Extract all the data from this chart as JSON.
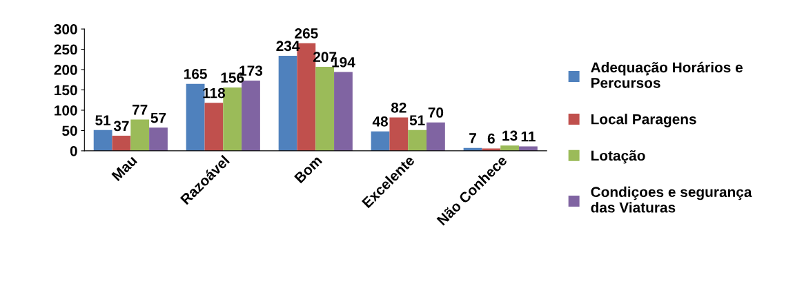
{
  "chart_data": {
    "type": "bar",
    "categories": [
      "Mau",
      "Razoável",
      "Bom",
      "Excelente",
      "Não Conhece"
    ],
    "series": [
      {
        "name": "Adequação Horários e Percursos",
        "color": "#4f81bd",
        "values": [
          51,
          165,
          234,
          48,
          7
        ]
      },
      {
        "name": "Local Paragens",
        "color": "#c0504d",
        "values": [
          37,
          118,
          265,
          82,
          6
        ]
      },
      {
        "name": "Lotação",
        "color": "#9bbb59",
        "values": [
          77,
          156,
          207,
          51,
          13
        ]
      },
      {
        "name": "Condiçoes e segurança das Viaturas",
        "color": "#8064a2",
        "values": [
          57,
          173,
          194,
          70,
          11
        ]
      }
    ],
    "ylim": [
      0,
      300
    ],
    "yticks": [
      0,
      50,
      100,
      150,
      200,
      250,
      300
    ],
    "grid": false,
    "legend": "right",
    "data_labels": true
  }
}
